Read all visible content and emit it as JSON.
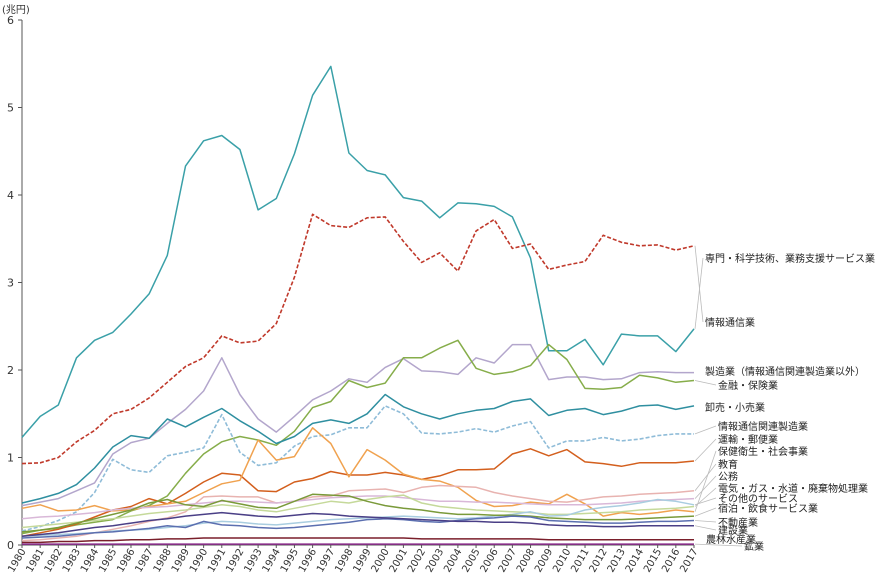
{
  "chart_data": {
    "type": "line",
    "ylabel": "(兆円)",
    "ylim": [
      0,
      6
    ],
    "yticks": [
      "0",
      "1",
      "2",
      "3",
      "4",
      "5",
      "6"
    ],
    "x": [
      "1980",
      "1981",
      "1982",
      "1983",
      "1984",
      "1985",
      "1986",
      "1987",
      "1988",
      "1989",
      "1990",
      "1991",
      "1992",
      "1993",
      "1994",
      "1995",
      "1996",
      "1997",
      "1998",
      "1999",
      "2000",
      "2001",
      "2002",
      "2003",
      "2004",
      "2005",
      "2006",
      "2007",
      "2008",
      "2009",
      "2010",
      "2011",
      "2012",
      "2013",
      "2014",
      "2015",
      "2016",
      "2017"
    ],
    "grid": false,
    "legend": "labels at line ends (right)",
    "series": [
      {
        "name": "専門・科学技術、業務支援サービス業",
        "color": "#3aa0a8",
        "dash": false,
        "values": [
          1.23,
          1.47,
          1.6,
          2.14,
          2.34,
          2.43,
          2.64,
          2.87,
          3.31,
          4.33,
          4.62,
          4.68,
          4.52,
          3.83,
          3.96,
          4.47,
          5.14,
          5.47,
          4.48,
          4.28,
          4.23,
          3.97,
          3.93,
          3.74,
          3.91,
          3.9,
          3.87,
          3.75,
          3.28,
          2.22,
          2.22,
          2.35,
          2.06,
          2.41,
          2.39,
          2.39,
          2.21,
          2.47
        ]
      },
      {
        "name": "情報通信業",
        "color": "#c0392b",
        "dash": true,
        "values": [
          0.93,
          0.94,
          1.0,
          1.18,
          1.31,
          1.5,
          1.55,
          1.68,
          1.86,
          2.04,
          2.14,
          2.39,
          2.31,
          2.33,
          2.53,
          3.06,
          3.78,
          3.65,
          3.63,
          3.74,
          3.75,
          3.47,
          3.23,
          3.34,
          3.13,
          3.59,
          3.72,
          3.39,
          3.44,
          3.15,
          3.2,
          3.24,
          3.54,
          3.46,
          3.42,
          3.43,
          3.37,
          3.42
        ]
      },
      {
        "name": "製造業（情報通信関連製造業以外）",
        "color": "#b3a6cc",
        "dash": false,
        "values": [
          0.45,
          0.49,
          0.53,
          0.62,
          0.71,
          1.04,
          1.17,
          1.22,
          1.39,
          1.55,
          1.76,
          2.14,
          1.72,
          1.44,
          1.29,
          1.47,
          1.66,
          1.76,
          1.9,
          1.86,
          2.03,
          2.13,
          1.99,
          1.98,
          1.95,
          2.14,
          2.08,
          2.29,
          2.29,
          1.89,
          1.92,
          1.92,
          1.89,
          1.9,
          1.97,
          1.98,
          1.97,
          1.97
        ]
      },
      {
        "name": "金融・保険業",
        "color": "#86ad4a",
        "dash": false,
        "values": [
          0.13,
          0.17,
          0.19,
          0.23,
          0.26,
          0.29,
          0.39,
          0.45,
          0.56,
          0.82,
          1.04,
          1.18,
          1.24,
          1.2,
          1.14,
          1.3,
          1.57,
          1.64,
          1.88,
          1.8,
          1.85,
          2.14,
          2.14,
          2.25,
          2.34,
          2.02,
          1.95,
          1.98,
          2.05,
          2.29,
          2.12,
          1.79,
          1.78,
          1.8,
          1.94,
          1.91,
          1.86,
          1.88
        ]
      },
      {
        "name": "卸売・小売業",
        "color": "#2f8fa0",
        "dash": false,
        "values": [
          0.48,
          0.53,
          0.59,
          0.69,
          0.88,
          1.12,
          1.25,
          1.22,
          1.44,
          1.35,
          1.46,
          1.56,
          1.42,
          1.3,
          1.16,
          1.24,
          1.39,
          1.43,
          1.39,
          1.5,
          1.72,
          1.58,
          1.5,
          1.44,
          1.5,
          1.54,
          1.56,
          1.64,
          1.67,
          1.48,
          1.54,
          1.56,
          1.49,
          1.53,
          1.59,
          1.6,
          1.55,
          1.59
        ]
      },
      {
        "name": "情報通信関連製造業",
        "color": "#8fbcd8",
        "dash": true,
        "values": [
          0.16,
          0.21,
          0.28,
          0.38,
          0.6,
          0.98,
          0.86,
          0.83,
          1.02,
          1.06,
          1.11,
          1.49,
          1.06,
          0.91,
          0.94,
          1.13,
          1.24,
          1.26,
          1.34,
          1.34,
          1.59,
          1.5,
          1.28,
          1.27,
          1.29,
          1.33,
          1.29,
          1.36,
          1.41,
          1.11,
          1.19,
          1.19,
          1.23,
          1.19,
          1.21,
          1.25,
          1.27,
          1.27
        ]
      },
      {
        "name": "運輸・郵便業",
        "color": "#d35f1d",
        "dash": false,
        "values": [
          0.1,
          0.14,
          0.18,
          0.24,
          0.32,
          0.4,
          0.44,
          0.53,
          0.47,
          0.59,
          0.72,
          0.82,
          0.8,
          0.62,
          0.61,
          0.72,
          0.76,
          0.84,
          0.8,
          0.8,
          0.83,
          0.8,
          0.75,
          0.79,
          0.86,
          0.86,
          0.87,
          1.04,
          1.1,
          1.02,
          1.09,
          0.95,
          0.93,
          0.9,
          0.94,
          0.94,
          0.94,
          0.96
        ]
      },
      {
        "name": "保健衛生・社会事業",
        "color": "#f0a24f",
        "dash": false,
        "values": [
          0.42,
          0.46,
          0.39,
          0.4,
          0.45,
          0.39,
          0.4,
          0.44,
          0.47,
          0.5,
          0.6,
          0.7,
          0.74,
          1.2,
          0.97,
          1.01,
          1.34,
          1.16,
          0.78,
          1.09,
          0.97,
          0.81,
          0.75,
          0.73,
          0.66,
          0.51,
          0.44,
          0.45,
          0.49,
          0.47,
          0.58,
          0.47,
          0.33,
          0.37,
          0.35,
          0.37,
          0.4,
          0.38
        ]
      },
      {
        "name": "教育",
        "color": "#e8b3b0",
        "dash": false,
        "values": [
          0.05,
          0.06,
          0.08,
          0.1,
          0.14,
          0.18,
          0.22,
          0.27,
          0.31,
          0.38,
          0.55,
          0.56,
          0.55,
          0.55,
          0.48,
          0.5,
          0.55,
          0.56,
          0.62,
          0.63,
          0.64,
          0.6,
          0.66,
          0.68,
          0.67,
          0.66,
          0.6,
          0.56,
          0.53,
          0.5,
          0.49,
          0.52,
          0.55,
          0.56,
          0.58,
          0.59,
          0.6,
          0.62
        ]
      },
      {
        "name": "公務",
        "color": "#d9b8d8",
        "dash": false,
        "values": [
          0.3,
          0.32,
          0.33,
          0.35,
          0.37,
          0.4,
          0.42,
          0.43,
          0.44,
          0.46,
          0.48,
          0.5,
          0.5,
          0.49,
          0.48,
          0.5,
          0.52,
          0.54,
          0.55,
          0.56,
          0.56,
          0.54,
          0.52,
          0.5,
          0.5,
          0.49,
          0.49,
          0.48,
          0.47,
          0.46,
          0.46,
          0.46,
          0.47,
          0.48,
          0.5,
          0.51,
          0.52,
          0.53
        ]
      },
      {
        "name": "電気・ガス・水道・廃棄物処理業",
        "color": "#c5d99a",
        "dash": false,
        "values": [
          0.2,
          0.22,
          0.24,
          0.26,
          0.28,
          0.3,
          0.33,
          0.36,
          0.38,
          0.4,
          0.43,
          0.46,
          0.44,
          0.4,
          0.38,
          0.42,
          0.46,
          0.5,
          0.48,
          0.52,
          0.55,
          0.57,
          0.48,
          0.44,
          0.42,
          0.4,
          0.39,
          0.38,
          0.37,
          0.35,
          0.35,
          0.36,
          0.37,
          0.38,
          0.4,
          0.41,
          0.42,
          0.44
        ]
      },
      {
        "name": "その他のサービス",
        "color": "#a9cde0",
        "dash": false,
        "values": [
          0.1,
          0.11,
          0.12,
          0.13,
          0.14,
          0.16,
          0.17,
          0.18,
          0.2,
          0.22,
          0.25,
          0.27,
          0.26,
          0.24,
          0.23,
          0.25,
          0.27,
          0.29,
          0.3,
          0.31,
          0.32,
          0.33,
          0.32,
          0.31,
          0.3,
          0.31,
          0.33,
          0.35,
          0.38,
          0.33,
          0.34,
          0.4,
          0.43,
          0.45,
          0.48,
          0.52,
          0.5,
          0.46
        ]
      },
      {
        "name": "宿泊・飲食サービス業",
        "color": "#7a9a3a",
        "dash": false,
        "values": [
          0.15,
          0.17,
          0.2,
          0.25,
          0.3,
          0.35,
          0.4,
          0.48,
          0.52,
          0.46,
          0.44,
          0.51,
          0.47,
          0.43,
          0.42,
          0.5,
          0.58,
          0.57,
          0.56,
          0.5,
          0.45,
          0.42,
          0.4,
          0.37,
          0.35,
          0.35,
          0.34,
          0.34,
          0.33,
          0.31,
          0.3,
          0.29,
          0.29,
          0.29,
          0.3,
          0.31,
          0.32,
          0.33
        ]
      },
      {
        "name": "不動産業",
        "color": "#5b6fb0",
        "dash": false,
        "values": [
          0.08,
          0.09,
          0.1,
          0.12,
          0.14,
          0.15,
          0.17,
          0.19,
          0.22,
          0.2,
          0.27,
          0.23,
          0.22,
          0.2,
          0.19,
          0.2,
          0.22,
          0.24,
          0.26,
          0.29,
          0.3,
          0.29,
          0.27,
          0.26,
          0.28,
          0.3,
          0.31,
          0.33,
          0.32,
          0.28,
          0.27,
          0.26,
          0.25,
          0.25,
          0.26,
          0.27,
          0.27,
          0.28
        ]
      },
      {
        "name": "建設業",
        "color": "#4a3f86",
        "dash": false,
        "values": [
          0.1,
          0.12,
          0.14,
          0.17,
          0.2,
          0.22,
          0.25,
          0.28,
          0.3,
          0.33,
          0.35,
          0.37,
          0.35,
          0.33,
          0.32,
          0.34,
          0.36,
          0.35,
          0.33,
          0.32,
          0.31,
          0.3,
          0.29,
          0.28,
          0.27,
          0.27,
          0.26,
          0.26,
          0.25,
          0.23,
          0.22,
          0.22,
          0.21,
          0.21,
          0.22,
          0.22,
          0.22,
          0.22
        ]
      },
      {
        "name": "農林水産業",
        "color": "#7a1f2b",
        "dash": false,
        "values": [
          0.03,
          0.03,
          0.04,
          0.04,
          0.05,
          0.05,
          0.06,
          0.06,
          0.07,
          0.07,
          0.08,
          0.08,
          0.08,
          0.08,
          0.08,
          0.08,
          0.08,
          0.08,
          0.08,
          0.08,
          0.08,
          0.08,
          0.07,
          0.07,
          0.07,
          0.07,
          0.07,
          0.07,
          0.07,
          0.06,
          0.06,
          0.06,
          0.06,
          0.06,
          0.06,
          0.06,
          0.06,
          0.06
        ]
      },
      {
        "name": "鉱業",
        "color": "#8a2a8a",
        "dash": false,
        "values": [
          0.01,
          0.01,
          0.01,
          0.01,
          0.01,
          0.01,
          0.01,
          0.01,
          0.01,
          0.01,
          0.01,
          0.01,
          0.01,
          0.01,
          0.01,
          0.01,
          0.01,
          0.01,
          0.01,
          0.01,
          0.01,
          0.01,
          0.01,
          0.01,
          0.01,
          0.01,
          0.01,
          0.01,
          0.01,
          0.01,
          0.01,
          0.01,
          0.01,
          0.01,
          0.01,
          0.01,
          0.01,
          0.01
        ]
      }
    ]
  }
}
